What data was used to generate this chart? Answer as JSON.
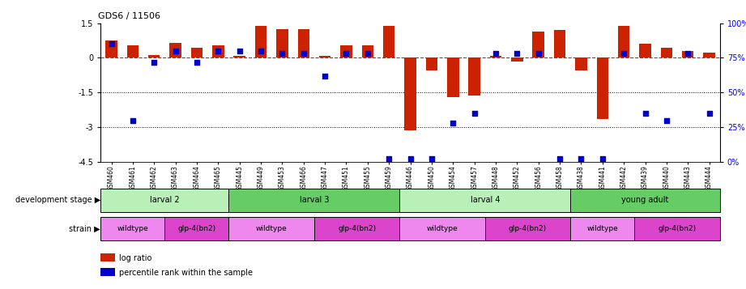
{
  "title": "GDS6 / 11506",
  "samples": [
    "GSM460",
    "GSM461",
    "GSM462",
    "GSM463",
    "GSM464",
    "GSM465",
    "GSM445",
    "GSM449",
    "GSM453",
    "GSM466",
    "GSM447",
    "GSM451",
    "GSM455",
    "GSM459",
    "GSM446",
    "GSM450",
    "GSM454",
    "GSM457",
    "GSM448",
    "GSM452",
    "GSM456",
    "GSM458",
    "GSM438",
    "GSM441",
    "GSM442",
    "GSM439",
    "GSM440",
    "GSM443",
    "GSM444"
  ],
  "log_ratio": [
    0.75,
    0.55,
    0.12,
    0.65,
    0.45,
    0.55,
    0.08,
    1.38,
    1.25,
    1.25,
    0.07,
    0.55,
    0.55,
    1.38,
    -3.15,
    -0.55,
    -1.7,
    -1.62,
    0.07,
    -0.15,
    1.15,
    1.22,
    -0.55,
    -2.65,
    1.38,
    0.62,
    0.42,
    0.28,
    0.22
  ],
  "percentile": [
    85,
    30,
    72,
    80,
    72,
    80,
    80,
    80,
    78,
    78,
    62,
    78,
    78,
    2,
    2,
    2,
    28,
    35,
    78,
    78,
    78,
    2,
    2,
    2,
    78,
    35,
    30,
    78,
    35
  ],
  "development_stages": [
    {
      "label": "larval 2",
      "start": 0,
      "end": 6,
      "color": "#b8f0b8"
    },
    {
      "label": "larval 3",
      "start": 6,
      "end": 14,
      "color": "#66cc66"
    },
    {
      "label": "larval 4",
      "start": 14,
      "end": 22,
      "color": "#b8f0b8"
    },
    {
      "label": "young adult",
      "start": 22,
      "end": 29,
      "color": "#66cc66"
    }
  ],
  "strains": [
    {
      "label": "wildtype",
      "start": 0,
      "end": 3,
      "color": "#ee88ee"
    },
    {
      "label": "glp-4(bn2)",
      "start": 3,
      "end": 6,
      "color": "#dd44cc"
    },
    {
      "label": "wildtype",
      "start": 6,
      "end": 10,
      "color": "#ee88ee"
    },
    {
      "label": "glp-4(bn2)",
      "start": 10,
      "end": 14,
      "color": "#dd44cc"
    },
    {
      "label": "wildtype",
      "start": 14,
      "end": 18,
      "color": "#ee88ee"
    },
    {
      "label": "glp-4(bn2)",
      "start": 18,
      "end": 22,
      "color": "#dd44cc"
    },
    {
      "label": "wildtype",
      "start": 22,
      "end": 25,
      "color": "#ee88ee"
    },
    {
      "label": "glp-4(bn2)",
      "start": 25,
      "end": 29,
      "color": "#dd44cc"
    }
  ],
  "bar_color": "#cc2200",
  "dot_color": "#0000cc",
  "ylim_left": [
    -4.5,
    1.5
  ],
  "ylim_right": [
    0,
    100
  ],
  "yticks_left": [
    1.5,
    0,
    -1.5,
    -3.0,
    -4.5
  ],
  "yticks_right": [
    100,
    75,
    50,
    25,
    0
  ],
  "hlines": [
    -1.5,
    -3.0
  ],
  "zero_line_color": "#cc2200",
  "background_color": "#ffffff",
  "bar_width": 0.55,
  "label_dev_stage": "development stage",
  "label_strain": "strain",
  "legend_bar": "log ratio",
  "legend_dot": "percentile rank within the sample"
}
